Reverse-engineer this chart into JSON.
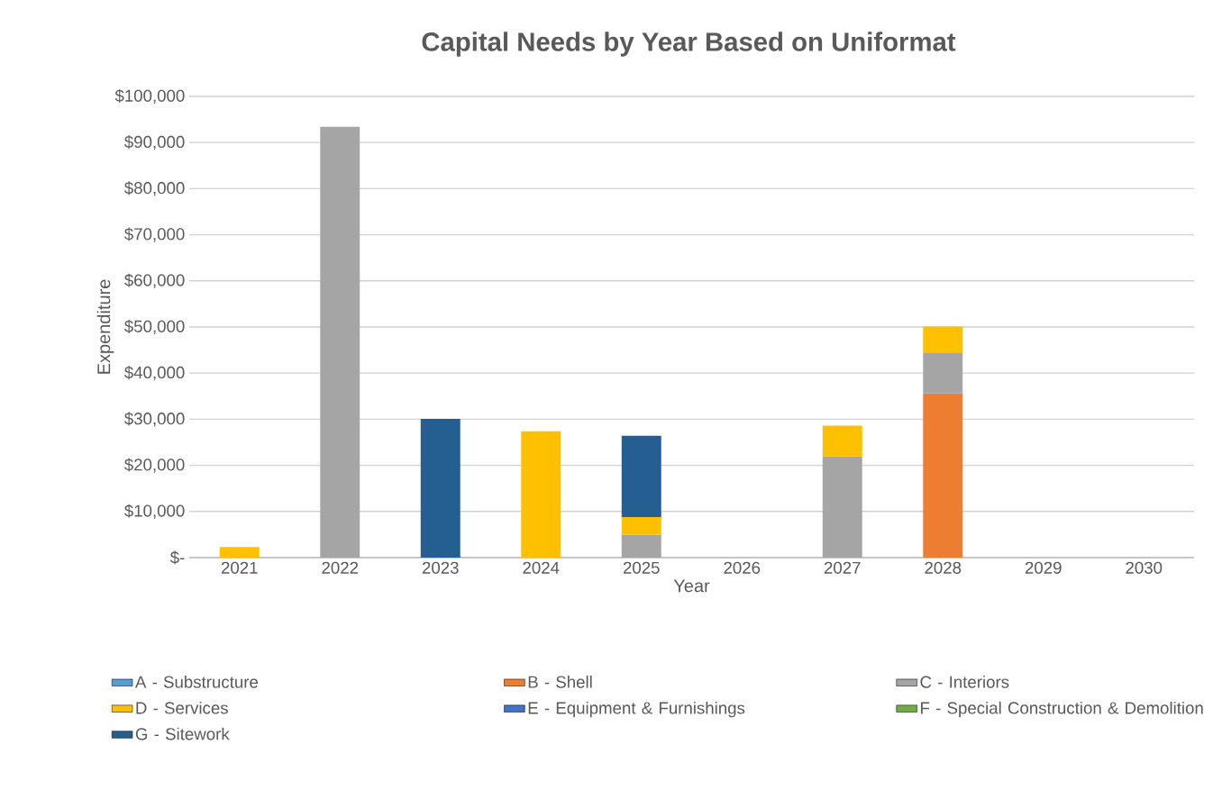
{
  "chart_data": {
    "type": "bar",
    "stacked": true,
    "title": "Capital Needs by Year Based on Uniformat",
    "xlabel": "Year",
    "ylabel": "Expenditure",
    "categories": [
      "2021",
      "2022",
      "2023",
      "2024",
      "2025",
      "2026",
      "2027",
      "2028",
      "2029",
      "2030"
    ],
    "series": [
      {
        "name": "A - Substructure",
        "color": "#5b9bd5",
        "values": [
          null,
          null,
          null,
          null,
          null,
          null,
          null,
          null,
          null,
          null
        ]
      },
      {
        "name": "B - Shell",
        "color": "#ed7d31",
        "values": [
          null,
          null,
          null,
          null,
          null,
          null,
          null,
          35600,
          null,
          null
        ]
      },
      {
        "name": "C - Interiors",
        "color": "#a5a5a5",
        "values": [
          null,
          93400,
          null,
          null,
          5000,
          null,
          21900,
          8900,
          null,
          null
        ]
      },
      {
        "name": "D - Services",
        "color": "#ffc000",
        "values": [
          2300,
          null,
          null,
          27400,
          3800,
          null,
          6700,
          5600,
          null,
          null
        ]
      },
      {
        "name": "E - Equipment & Furnishings",
        "color": "#4472c4",
        "values": [
          null,
          null,
          null,
          null,
          null,
          null,
          null,
          null,
          null,
          null
        ]
      },
      {
        "name": "F - Special Construction & Demolition",
        "color": "#70ad47",
        "values": [
          null,
          null,
          null,
          null,
          null,
          null,
          null,
          null,
          null,
          null
        ]
      },
      {
        "name": "G - Sitework",
        "color": "#255e91",
        "values": [
          null,
          null,
          30100,
          null,
          17600,
          null,
          null,
          null,
          null,
          null
        ]
      }
    ],
    "ylim": [
      0,
      100000
    ],
    "yticks": [
      {
        "value": 0,
        "label": "$-"
      },
      {
        "value": 10000,
        "label": "$10,000"
      },
      {
        "value": 20000,
        "label": "$20,000"
      },
      {
        "value": 30000,
        "label": "$30,000"
      },
      {
        "value": 40000,
        "label": "$40,000"
      },
      {
        "value": 50000,
        "label": "$50,000"
      },
      {
        "value": 60000,
        "label": "$60,000"
      },
      {
        "value": 70000,
        "label": "$70,000"
      },
      {
        "value": 80000,
        "label": "$80,000"
      },
      {
        "value": 90000,
        "label": "$90,000"
      },
      {
        "value": 100000,
        "label": "$100,000"
      }
    ],
    "grid": "y",
    "legend": "bottom"
  }
}
